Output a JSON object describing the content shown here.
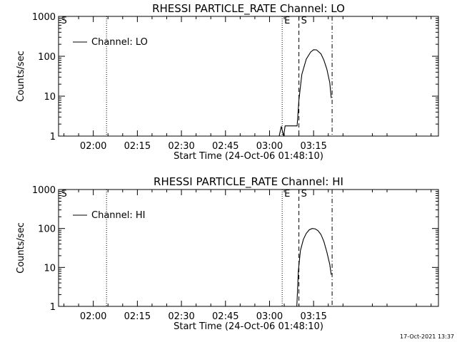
{
  "footer": {
    "timestamp": "17-Oct-2021 13:37"
  },
  "chart_data": [
    {
      "type": "line",
      "title": "RHESSI PARTICLE_RATE Channel: LO",
      "xlabel": "Start Time (24-Oct-06 01:48:10)",
      "ylabel": "Counts/sec",
      "yscale": "log",
      "ylim": [
        1,
        1000
      ],
      "xlim_minutes": [
        108.17,
        237.5
      ],
      "x_ticks": [
        {
          "t": 120,
          "label": "02:00"
        },
        {
          "t": 135,
          "label": "02:15"
        },
        {
          "t": 150,
          "label": "02:30"
        },
        {
          "t": 165,
          "label": "02:45"
        },
        {
          "t": 180,
          "label": "03:00"
        },
        {
          "t": 195,
          "label": "03:15"
        }
      ],
      "y_ticks": [
        {
          "v": 1,
          "label": "1"
        },
        {
          "v": 10,
          "label": "10"
        },
        {
          "v": 100,
          "label": "100"
        },
        {
          "v": 1000,
          "label": "1000"
        }
      ],
      "legend": {
        "label": "Channel: LO",
        "position": "top-left"
      },
      "markers": [
        {
          "t": 108.3,
          "label": "S",
          "style": "none"
        },
        {
          "t": 124.5,
          "label": "",
          "style": "dotted"
        },
        {
          "t": 184.3,
          "label": "E",
          "style": "dotted"
        },
        {
          "t": 190.0,
          "label": "S",
          "style": "dashed"
        },
        {
          "t": 201.3,
          "label": "",
          "style": "dashdot"
        }
      ],
      "series": [
        {
          "name": "Channel: LO",
          "x": [
            183.3,
            184.0,
            184.8,
            185.3,
            189.4,
            190.0,
            191.0,
            192.5,
            194.0,
            195.0,
            196.0,
            197.5,
            198.5,
            199.5,
            200.5,
            201.0
          ],
          "y": [
            1,
            1.75,
            1,
            1.8,
            1.8,
            8,
            35,
            85,
            128,
            146,
            145,
            115,
            80,
            48,
            22,
            9
          ]
        }
      ]
    },
    {
      "type": "line",
      "title": "RHESSI PARTICLE_RATE Channel: HI",
      "xlabel": "Start Time (24-Oct-06 01:48:10)",
      "ylabel": "Counts/sec",
      "yscale": "log",
      "ylim": [
        1,
        1000
      ],
      "xlim_minutes": [
        108.17,
        237.5
      ],
      "x_ticks": [
        {
          "t": 120,
          "label": "02:00"
        },
        {
          "t": 135,
          "label": "02:15"
        },
        {
          "t": 150,
          "label": "02:30"
        },
        {
          "t": 165,
          "label": "02:45"
        },
        {
          "t": 180,
          "label": "03:00"
        },
        {
          "t": 195,
          "label": "03:15"
        }
      ],
      "y_ticks": [
        {
          "v": 1,
          "label": "1"
        },
        {
          "v": 10,
          "label": "10"
        },
        {
          "v": 100,
          "label": "100"
        },
        {
          "v": 1000,
          "label": "1000"
        }
      ],
      "legend": {
        "label": "Channel: HI",
        "position": "top-left"
      },
      "markers": [
        {
          "t": 108.3,
          "label": "S",
          "style": "none"
        },
        {
          "t": 124.5,
          "label": "",
          "style": "dotted"
        },
        {
          "t": 184.3,
          "label": "E",
          "style": "dotted"
        },
        {
          "t": 190.0,
          "label": "S",
          "style": "dashed"
        },
        {
          "t": 201.3,
          "label": "",
          "style": "dashdot"
        }
      ],
      "series": [
        {
          "name": "Channel: HI",
          "x": [
            189.3,
            189.8,
            190.5,
            191.5,
            192.5,
            193.5,
            194.5,
            195.5,
            196.5,
            197.5,
            198.5,
            199.5,
            200.5,
            201.0
          ],
          "y": [
            1,
            8,
            27,
            52,
            75,
            92,
            100,
            98,
            88,
            70,
            46,
            25,
            12,
            6.5
          ]
        }
      ]
    }
  ]
}
